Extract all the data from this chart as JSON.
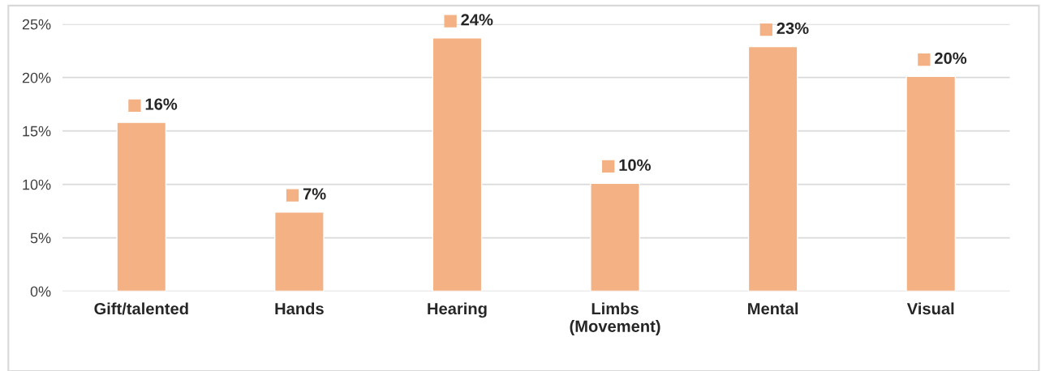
{
  "chart_data": {
    "type": "bar",
    "categories": [
      "Gift/talented",
      "Hands",
      "Hearing",
      "Limbs\n(Movement)",
      "Mental",
      "Visual"
    ],
    "values": [
      15.8,
      7.4,
      23.7,
      10.1,
      22.9,
      20.1
    ],
    "value_labels": [
      "16%",
      "7%",
      "24%",
      "10%",
      "23%",
      "20%"
    ],
    "color": "#f4b183",
    "ylim": [
      0,
      25
    ],
    "yticks": [
      {
        "value": 0,
        "label": "0%"
      },
      {
        "value": 5,
        "label": "5%"
      },
      {
        "value": 10,
        "label": "10%"
      },
      {
        "value": 15,
        "label": "15%"
      },
      {
        "value": 20,
        "label": "20%"
      },
      {
        "value": 25,
        "label": "25%"
      }
    ],
    "grid": "y"
  }
}
